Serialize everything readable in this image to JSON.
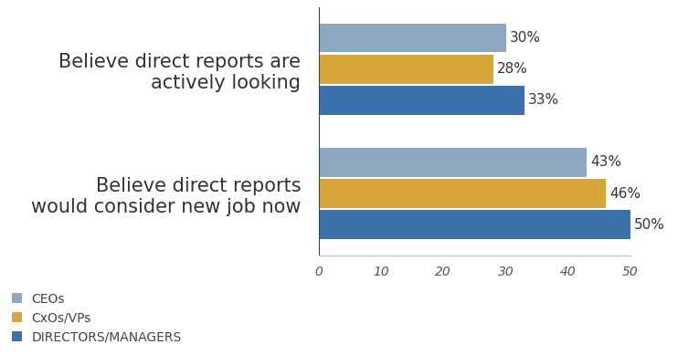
{
  "chart_data": {
    "type": "bar",
    "orientation": "horizontal",
    "categories": [
      "Believe direct reports are actively looking",
      "Believe direct reports would consider new job now"
    ],
    "series": [
      {
        "name": "CEOs",
        "color": "#8fa8c2",
        "values": [
          30,
          43
        ],
        "value_labels": [
          "30%",
          "43%"
        ]
      },
      {
        "name": "CxOs/VPs",
        "color": "#d7a73c",
        "values": [
          28,
          46
        ],
        "value_labels": [
          "28%",
          "46%"
        ]
      },
      {
        "name": "DIRECTORS/MANAGERS",
        "color": "#3b72ab",
        "values": [
          33,
          50
        ],
        "value_labels": [
          "33%",
          "50%"
        ]
      }
    ],
    "xlim": [
      0,
      50
    ],
    "xticks": [
      0,
      10,
      20,
      30,
      40,
      50
    ],
    "data_labels": true,
    "legend": "lower left",
    "grid": false
  }
}
